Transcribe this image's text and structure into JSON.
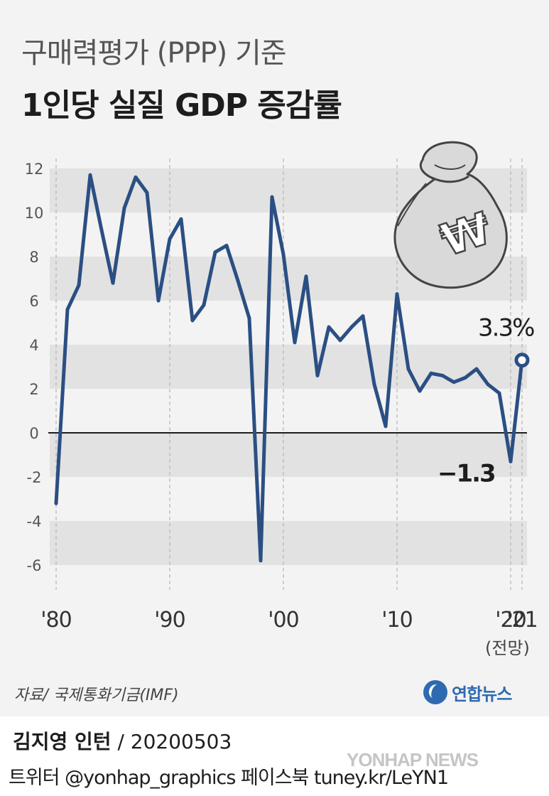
{
  "header": {
    "title_line1": "구매력평가 (PPP) 기준",
    "title_line2": "1인당 실질 GDP 증감률"
  },
  "annotations": {
    "last_value_label": "3.3%",
    "min_value_label": "−1.3",
    "forecast_label": "(전망)"
  },
  "footer": {
    "source": "자료/ 국제통화기금(IMF)",
    "logo_text": "연합뉴스",
    "credit_name": "김지영 인턴",
    "credit_date": " / 20200503",
    "social": "트위터 @yonhap_graphics  페이스북 tuney.kr/LeYN1",
    "watermark": "YONHAP NEWS"
  },
  "colors": {
    "line": "#2b4f83",
    "band": "#e2e2e2",
    "zero_line": "#1d1d1d",
    "background": "#f3f3f3"
  },
  "chart_data": {
    "type": "line",
    "title": "1인당 실질 GDP 증감률",
    "x": [
      1980,
      1981,
      1982,
      1983,
      1984,
      1985,
      1986,
      1987,
      1988,
      1989,
      1990,
      1991,
      1992,
      1993,
      1994,
      1995,
      1996,
      1997,
      1998,
      1999,
      2000,
      2001,
      2002,
      2003,
      2004,
      2005,
      2006,
      2007,
      2008,
      2009,
      2010,
      2011,
      2012,
      2013,
      2014,
      2015,
      2016,
      2017,
      2018,
      2019,
      2020,
      2021
    ],
    "values": [
      -3.2,
      5.6,
      6.7,
      11.7,
      9.2,
      6.8,
      10.2,
      11.6,
      10.9,
      6.0,
      8.8,
      9.7,
      5.1,
      5.8,
      8.2,
      8.5,
      6.9,
      5.2,
      -5.8,
      10.7,
      8.1,
      4.1,
      7.1,
      2.6,
      4.8,
      4.2,
      4.8,
      5.3,
      2.2,
      0.3,
      6.3,
      2.9,
      1.9,
      2.7,
      2.6,
      2.3,
      2.5,
      2.9,
      2.2,
      1.8,
      -1.3,
      3.3
    ],
    "y_ticks": [
      "12",
      "10",
      "8",
      "6",
      "4",
      "2",
      "0",
      "-2",
      "-4",
      "-6"
    ],
    "y_tick_values": [
      12,
      10,
      8,
      6,
      4,
      2,
      0,
      -2,
      -4,
      -6
    ],
    "x_tick_labels": [
      {
        "year": 1980,
        "label": "'80"
      },
      {
        "year": 1990,
        "label": "'90"
      },
      {
        "year": 2000,
        "label": "'00"
      },
      {
        "year": 2010,
        "label": "'10"
      },
      {
        "year": 2020,
        "label": "'20"
      },
      {
        "year": 2021,
        "label": "'21"
      }
    ],
    "xlim": [
      1980,
      2021
    ],
    "ylim": [
      -6,
      12
    ],
    "forecast_year": 2021,
    "legend": "none",
    "grid": "alternating horizontal bands"
  }
}
